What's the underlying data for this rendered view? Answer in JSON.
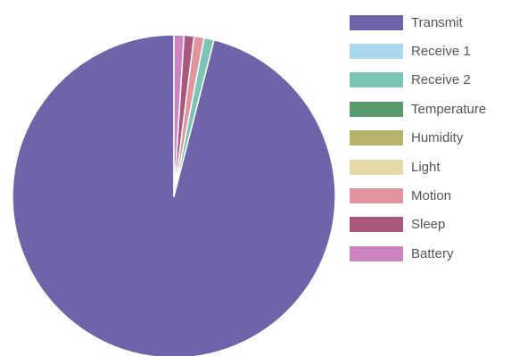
{
  "chart_data": {
    "type": "pie",
    "title": "",
    "legend_position": "right",
    "series": [
      {
        "labels": [
          "Transmit",
          "Receive 1",
          "Receive 2",
          "Temperature",
          "Humidity",
          "Light",
          "Motion",
          "Sleep",
          "Battery"
        ],
        "values": [
          96.0,
          0.0,
          1.0,
          0.0,
          0.0,
          0.0,
          1.0,
          1.0,
          1.0
        ],
        "colors": [
          "#6f63a9",
          "#aad8ef",
          "#7cc4b5",
          "#5a9b6e",
          "#b5b46a",
          "#e6d9a8",
          "#e0949b",
          "#a9577c",
          "#cd85c1"
        ]
      }
    ]
  }
}
